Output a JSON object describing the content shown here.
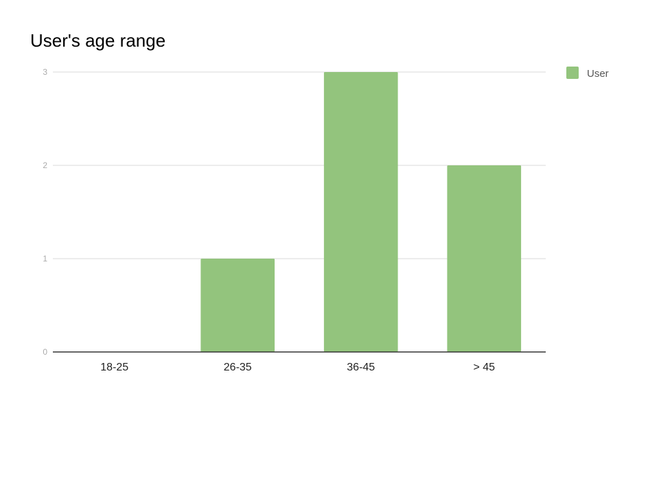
{
  "chart_data": {
    "type": "bar",
    "title": "User's age range",
    "xlabel": "",
    "ylabel": "",
    "categories": [
      "18-25",
      "26-35",
      "36-45",
      "> 45"
    ],
    "series": [
      {
        "name": "User",
        "values": [
          0,
          1,
          3,
          2
        ],
        "color": "#93c47d"
      }
    ],
    "ylim": [
      0,
      3
    ],
    "yticks": [
      0,
      1,
      2,
      3
    ],
    "grid": true,
    "legend": "right"
  }
}
